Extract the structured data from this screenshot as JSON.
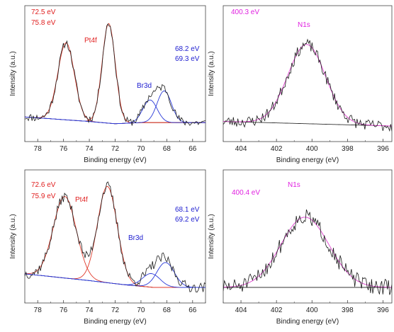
{
  "colors": {
    "data_line": "#1a1a1a",
    "pt_fit": "#e03a2a",
    "br_fit": "#2a3ad8",
    "n_fit": "#e040d0",
    "pt_text": "#e02020",
    "br_text": "#2020d0",
    "n_text": "#e020e0"
  },
  "chart_data": [
    {
      "type": "line",
      "panel": "top-left",
      "xlabel": "Binding energy (eV)",
      "ylabel": "Intensity (a.u.)",
      "xlim": [
        79,
        65
      ],
      "x_reversed": true,
      "xticks": [
        78,
        76,
        74,
        72,
        70,
        68,
        66
      ],
      "y_ticklabels": false,
      "annotations": [
        {
          "text": "72.5 eV",
          "color": "pt_text"
        },
        {
          "text": "75.8 eV",
          "color": "pt_text"
        },
        {
          "text": "Pt4f",
          "color": "pt_text"
        },
        {
          "text": "68.2 eV",
          "color": "br_text"
        },
        {
          "text": "69.3 eV",
          "color": "br_text"
        },
        {
          "text": "Br3d",
          "color": "br_text"
        }
      ],
      "background": [
        [
          79,
          0.08
        ],
        [
          74,
          0.04
        ],
        [
          72,
          0.02
        ],
        [
          70,
          0.03
        ],
        [
          66,
          0.03
        ],
        [
          65,
          0.03
        ]
      ],
      "series": [
        {
          "name": "Pt4f",
          "kind": "fit",
          "color": "pt_fit",
          "peaks": [
            {
              "center": 75.8,
              "height": 0.68,
              "fwhm": 1.5
            },
            {
              "center": 72.5,
              "height": 0.88,
              "fwhm": 1.2
            }
          ]
        },
        {
          "name": "Br3d",
          "kind": "fit",
          "color": "br_fit",
          "peaks": [
            {
              "center": 68.2,
              "height": 0.28,
              "fwhm": 1.3
            },
            {
              "center": 69.3,
              "height": 0.2,
              "fwhm": 1.3
            }
          ]
        },
        {
          "kind": "data",
          "color": "data_line",
          "noise": 0.035,
          "seed": 11
        }
      ]
    },
    {
      "type": "line",
      "panel": "top-right",
      "xlabel": "Binding energy (eV)",
      "ylabel": "Intensity (a.u.)",
      "xlim": [
        405,
        395.5
      ],
      "x_reversed": true,
      "xticks": [
        404,
        402,
        400,
        398,
        396
      ],
      "y_ticklabels": false,
      "annotations": [
        {
          "text": "400.3 eV",
          "color": "n_text"
        },
        {
          "text": "N1s",
          "color": "n_text"
        }
      ],
      "background": [
        [
          405,
          0.04
        ],
        [
          395.5,
          0.0
        ]
      ],
      "series": [
        {
          "name": "N1s",
          "kind": "fit",
          "color": "n_fit",
          "peaks": [
            {
              "center": 400.3,
              "height": 0.7,
              "fwhm": 2.5
            }
          ]
        },
        {
          "kind": "data",
          "color": "data_line",
          "noise": 0.05,
          "seed": 23
        }
      ]
    },
    {
      "type": "line",
      "panel": "bottom-left",
      "xlabel": "Binding energy (eV)",
      "ylabel": "Intensity (a.u.)",
      "xlim": [
        79,
        65
      ],
      "x_reversed": true,
      "xticks": [
        78,
        76,
        74,
        72,
        70,
        68,
        66
      ],
      "y_ticklabels": false,
      "annotations": [
        {
          "text": "72.6 eV",
          "color": "pt_text"
        },
        {
          "text": "75.9 eV",
          "color": "pt_text"
        },
        {
          "text": "Pt4f",
          "color": "pt_text"
        },
        {
          "text": "68.1 eV",
          "color": "br_text"
        },
        {
          "text": "69.2 eV",
          "color": "br_text"
        },
        {
          "text": "Br3d",
          "color": "br_text"
        }
      ],
      "background": [
        [
          79,
          0.12
        ],
        [
          74,
          0.06
        ],
        [
          71,
          0.02
        ],
        [
          69,
          0.0
        ],
        [
          65,
          0.0
        ]
      ],
      "series": [
        {
          "name": "Pt4f",
          "kind": "fit",
          "color": "pt_fit",
          "peaks": [
            {
              "center": 75.9,
              "height": 0.72,
              "fwhm": 2.1
            },
            {
              "center": 72.6,
              "height": 0.85,
              "fwhm": 1.8
            }
          ]
        },
        {
          "name": "Br3d",
          "kind": "fit",
          "color": "br_fit",
          "peaks": [
            {
              "center": 68.1,
              "height": 0.22,
              "fwhm": 1.6
            },
            {
              "center": 69.2,
              "height": 0.12,
              "fwhm": 1.6
            }
          ]
        },
        {
          "kind": "data",
          "color": "data_line",
          "noise": 0.045,
          "seed": 37
        }
      ]
    },
    {
      "type": "line",
      "panel": "bottom-right",
      "xlabel": "Binding energy (eV)",
      "ylabel": "Intensity (a.u.)",
      "xlim": [
        405,
        395.5
      ],
      "x_reversed": true,
      "xticks": [
        404,
        402,
        400,
        398,
        396
      ],
      "y_ticklabels": false,
      "annotations": [
        {
          "text": "400.4 eV",
          "color": "n_text"
        },
        {
          "text": "N1s",
          "color": "n_text"
        }
      ],
      "background": [
        [
          405,
          0.0
        ],
        [
          395.5,
          0.0
        ]
      ],
      "series": [
        {
          "name": "N1s",
          "kind": "fit",
          "color": "n_fit",
          "peaks": [
            {
              "center": 400.4,
              "height": 0.62,
              "fwhm": 3.2
            }
          ]
        },
        {
          "kind": "data",
          "color": "data_line",
          "noise": 0.07,
          "seed": 51
        }
      ]
    }
  ]
}
